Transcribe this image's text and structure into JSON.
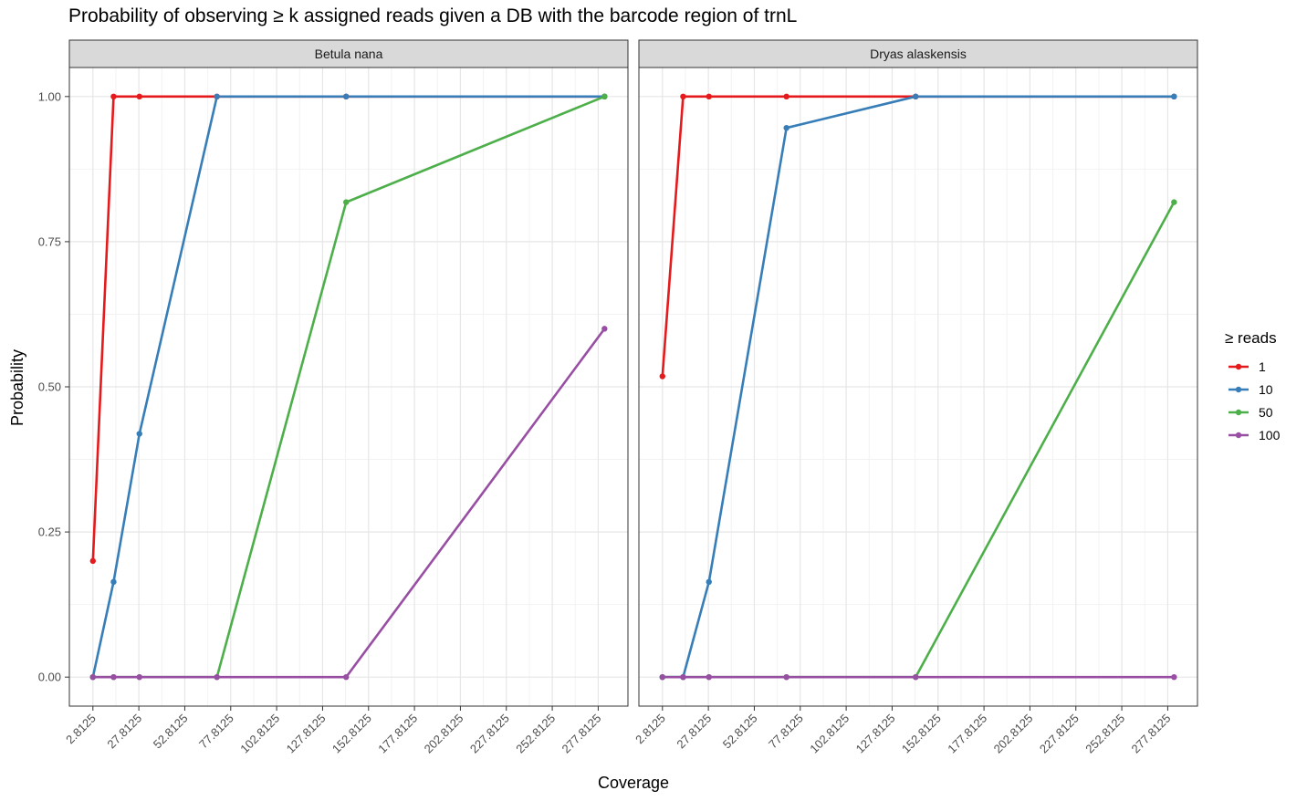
{
  "chart_data": {
    "type": "line",
    "title": "Probability of observing ≥ k assigned reads given a DB with the barcode region of trnL",
    "xlabel": "Coverage",
    "ylabel": "Probability",
    "xlim": [
      -10.0,
      294.0
    ],
    "ylim": [
      -0.05,
      1.05
    ],
    "x_ticks": [
      2.8125,
      27.8125,
      52.8125,
      77.8125,
      102.8125,
      127.8125,
      152.8125,
      177.8125,
      202.8125,
      227.8125,
      252.8125,
      277.8125
    ],
    "x_tick_labels": [
      "2.8125",
      "27.8125",
      "52.8125",
      "77.8125",
      "102.8125",
      "127.8125",
      "152.8125",
      "177.8125",
      "202.8125",
      "227.8125",
      "252.8125",
      "277.8125"
    ],
    "y_ticks": [
      0,
      0.25,
      0.5,
      0.75,
      1.0
    ],
    "y_tick_labels": [
      "0.00",
      "0.25",
      "0.50",
      "0.75",
      "1.00"
    ],
    "grid": true,
    "legend": {
      "title": "≥ reads",
      "placement": "right",
      "entries": [
        {
          "label": "1",
          "color": "#e41a1c"
        },
        {
          "label": "10",
          "color": "#377eb8"
        },
        {
          "label": "50",
          "color": "#4daf4a"
        },
        {
          "label": "100",
          "color": "#984ea3"
        }
      ]
    },
    "panels": [
      {
        "name": "Betula nana",
        "series": [
          {
            "name": "1",
            "color": "#e41a1c",
            "x": [
              2.8125,
              14.0625,
              28.125,
              70.3125,
              140.625,
              281.25
            ],
            "y": [
              0.2,
              1.0,
              1.0,
              1.0,
              1.0,
              1.0
            ]
          },
          {
            "name": "10",
            "color": "#377eb8",
            "x": [
              2.8125,
              14.0625,
              28.125,
              70.3125,
              140.625,
              281.25
            ],
            "y": [
              0.0,
              0.164,
              0.419,
              1.0,
              1.0,
              1.0
            ]
          },
          {
            "name": "50",
            "color": "#4daf4a",
            "x": [
              2.8125,
              14.0625,
              28.125,
              70.3125,
              140.625,
              281.25
            ],
            "y": [
              0.0,
              0.0,
              0.0,
              0.0,
              0.818,
              1.0
            ]
          },
          {
            "name": "100",
            "color": "#984ea3",
            "x": [
              2.8125,
              14.0625,
              28.125,
              70.3125,
              140.625,
              281.25
            ],
            "y": [
              0.0,
              0.0,
              0.0,
              0.0,
              0.0,
              0.6
            ]
          }
        ]
      },
      {
        "name": "Dryas alaskensis",
        "series": [
          {
            "name": "1",
            "color": "#e41a1c",
            "x": [
              2.8125,
              14.0625,
              28.125,
              70.3125,
              140.625,
              281.25
            ],
            "y": [
              0.518,
              1.0,
              1.0,
              1.0,
              1.0,
              1.0
            ]
          },
          {
            "name": "10",
            "color": "#377eb8",
            "x": [
              2.8125,
              14.0625,
              28.125,
              70.3125,
              140.625,
              281.25
            ],
            "y": [
              0.0,
              0.0,
              0.164,
              0.946,
              1.0,
              1.0
            ]
          },
          {
            "name": "50",
            "color": "#4daf4a",
            "x": [
              2.8125,
              14.0625,
              28.125,
              70.3125,
              140.625,
              281.25
            ],
            "y": [
              0.0,
              0.0,
              0.0,
              0.0,
              0.0,
              0.818
            ]
          },
          {
            "name": "100",
            "color": "#984ea3",
            "x": [
              2.8125,
              14.0625,
              28.125,
              70.3125,
              140.625,
              281.25
            ],
            "y": [
              0.0,
              0.0,
              0.0,
              0.0,
              0.0,
              0.0
            ]
          }
        ]
      }
    ]
  }
}
